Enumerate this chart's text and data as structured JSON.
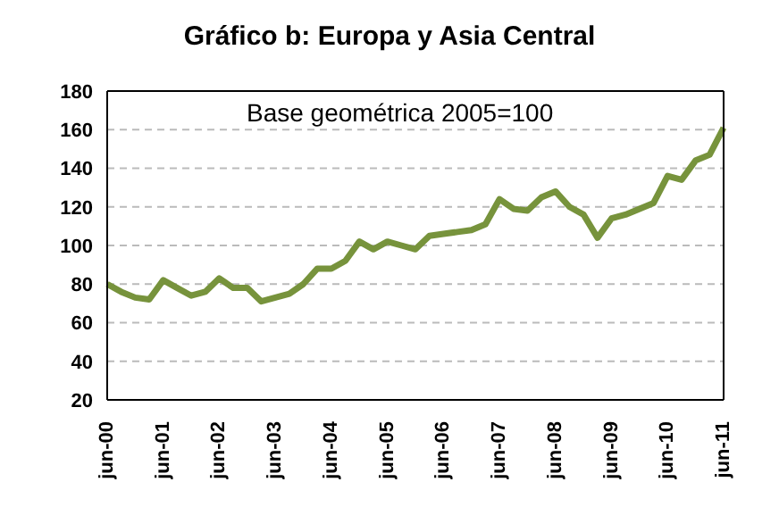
{
  "chart_data": {
    "type": "line",
    "title": "Gráfico b: Europa y Asia Central",
    "annotations": [
      "Base geométrica 2005=100"
    ],
    "categories": [
      "jun-00",
      null,
      null,
      null,
      "jun-01",
      null,
      null,
      null,
      "jun-02",
      null,
      null,
      null,
      "jun-03",
      null,
      null,
      null,
      "jun-04",
      null,
      null,
      null,
      "jun-05",
      null,
      null,
      null,
      "jun-06",
      null,
      null,
      null,
      "jun-07",
      null,
      null,
      null,
      "jun-08",
      null,
      null,
      null,
      "jun-09",
      null,
      null,
      null,
      "jun-10",
      null,
      null,
      null,
      "jun-11"
    ],
    "series": [
      {
        "color": "#77933c",
        "values": [
          80,
          76,
          73,
          72,
          82,
          78,
          74,
          76,
          83,
          78,
          78,
          71,
          73,
          75,
          80,
          88,
          88,
          92,
          102,
          98,
          102,
          100,
          98,
          105,
          106,
          107,
          108,
          111,
          124,
          119,
          118,
          125,
          128,
          120,
          116,
          104,
          114,
          116,
          119,
          122,
          136,
          134,
          144,
          147,
          161
        ]
      }
    ],
    "ylim": [
      20,
      180
    ],
    "yticks": [
      20,
      40,
      60,
      80,
      100,
      120,
      140,
      160,
      180
    ],
    "grid": "y",
    "legend": false,
    "marker": "none",
    "line_style": "solid"
  }
}
